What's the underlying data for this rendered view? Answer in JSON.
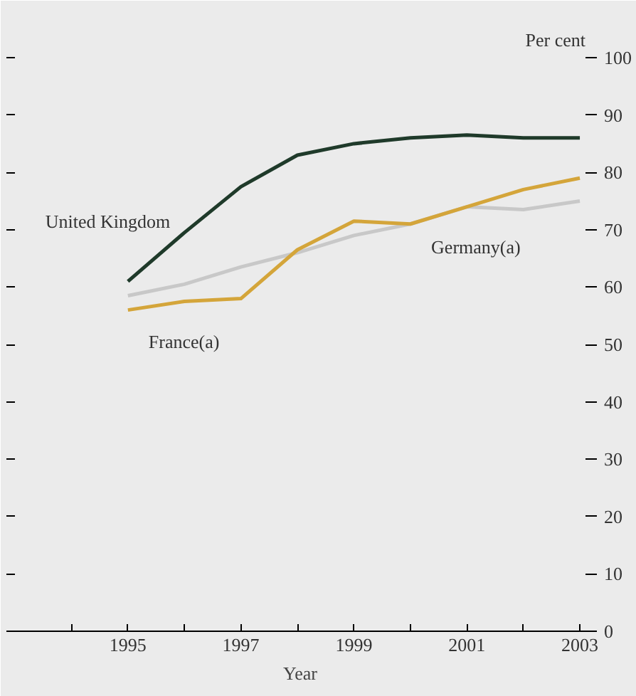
{
  "chart_data": {
    "type": "line",
    "ylabel": "Per cent",
    "xlabel": "Year",
    "x": [
      1995,
      1996,
      1997,
      1998,
      1999,
      2000,
      2001,
      2002,
      2003
    ],
    "series": [
      {
        "name": "United Kingdom",
        "color": "#1f3a2a",
        "values": [
          61,
          69.5,
          77.5,
          83,
          85,
          86,
          86.5,
          86,
          86
        ]
      },
      {
        "name": "France(a)",
        "color": "#d4a53a",
        "values": [
          56,
          57.5,
          58,
          66.5,
          71.5,
          71,
          74,
          77,
          79
        ]
      },
      {
        "name": "Germany(a)",
        "color": "#c8c8c8",
        "values": [
          58.5,
          60.5,
          63.5,
          66,
          69,
          71,
          74,
          73.5,
          75
        ]
      }
    ],
    "xlim": [
      1993,
      2003.1
    ],
    "ylim": [
      0,
      100
    ],
    "xticks": [
      {
        "value": 1994,
        "label": null
      },
      1995,
      {
        "value": 1996,
        "label": null
      },
      1997,
      {
        "value": 1998,
        "label": null
      },
      1999,
      {
        "value": 2000,
        "label": null
      },
      2001,
      {
        "value": 2002,
        "label": null
      },
      2003
    ],
    "yticks": [
      0,
      10,
      20,
      30,
      40,
      50,
      60,
      70,
      80,
      90,
      100
    ],
    "grid": false,
    "marker": "none",
    "line_style": "solid"
  }
}
